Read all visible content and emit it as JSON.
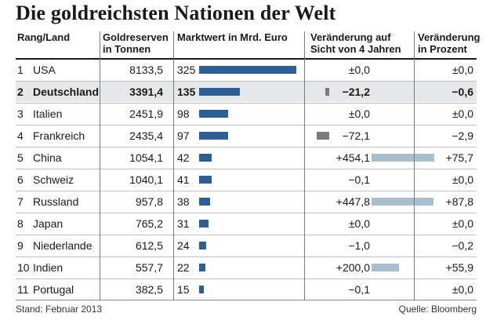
{
  "title": "Die goldreichsten Nationen der Welt",
  "headers": {
    "land": "Rang/Land",
    "reserven_1": "Goldreserven",
    "reserven_2": "in Tonnen",
    "markt": "Marktwert in Mrd. Euro",
    "ver4_1": "Veränderung auf",
    "ver4_2": "Sicht von 4 Jahren",
    "verp_1": "Veränderung",
    "verp_2": "in Prozent"
  },
  "footer": {
    "left": "Stand: Februar 2013",
    "right": "Quelle: Bloomberg"
  },
  "colors": {
    "market_bar": "#2d5f96",
    "positive_change_bar": "#a9bfcd",
    "negative_change_bar": "#7a7a7a",
    "row_shade": "#e6e7e9"
  },
  "chart_data": {
    "type": "table",
    "title": "Die goldreichsten Nationen der Welt",
    "highlight_row": 1,
    "rows": [
      {
        "rank": "1",
        "country": "USA",
        "reserves": "8133,5",
        "market_value": 325,
        "change_4y": "±0,0",
        "change_4y_value": 0,
        "change_pct": "±0,0"
      },
      {
        "rank": "2",
        "country": "Deutschland",
        "reserves": "3391,4",
        "market_value": 135,
        "change_4y": "−21,2",
        "change_4y_value": -21.2,
        "change_pct": "−0,6"
      },
      {
        "rank": "3",
        "country": "Italien",
        "reserves": "2451,9",
        "market_value": 98,
        "change_4y": "±0,0",
        "change_4y_value": 0,
        "change_pct": "±0,0"
      },
      {
        "rank": "4",
        "country": "Frankreich",
        "reserves": "2435,4",
        "market_value": 97,
        "change_4y": "−72,1",
        "change_4y_value": -72.1,
        "change_pct": "−2,9"
      },
      {
        "rank": "5",
        "country": "China",
        "reserves": "1054,1",
        "market_value": 42,
        "change_4y": "+454,1",
        "change_4y_value": 454.1,
        "change_pct": "+75,7"
      },
      {
        "rank": "6",
        "country": "Schweiz",
        "reserves": "1040,1",
        "market_value": 41,
        "change_4y": "−0,1",
        "change_4y_value": -0.1,
        "change_pct": "±0,0"
      },
      {
        "rank": "7",
        "country": "Russland",
        "reserves": "957,8",
        "market_value": 38,
        "change_4y": "+447,8",
        "change_4y_value": 447.8,
        "change_pct": "+87,8"
      },
      {
        "rank": "8",
        "country": "Japan",
        "reserves": "765,2",
        "market_value": 31,
        "change_4y": "±0,0",
        "change_4y_value": 0,
        "change_pct": "±0,0"
      },
      {
        "rank": "9",
        "country": "Niederlande",
        "reserves": "612,5",
        "market_value": 24,
        "change_4y": "−1,0",
        "change_4y_value": -1.0,
        "change_pct": "−0,2"
      },
      {
        "rank": "10",
        "country": "Indien",
        "reserves": "557,7",
        "market_value": 22,
        "change_4y": "+200,0",
        "change_4y_value": 200.0,
        "change_pct": "+55,9"
      },
      {
        "rank": "11",
        "country": "Portugal",
        "reserves": "382,5",
        "market_value": 15,
        "change_4y": "−0,1",
        "change_4y_value": -0.1,
        "change_pct": "±0,0"
      }
    ]
  }
}
